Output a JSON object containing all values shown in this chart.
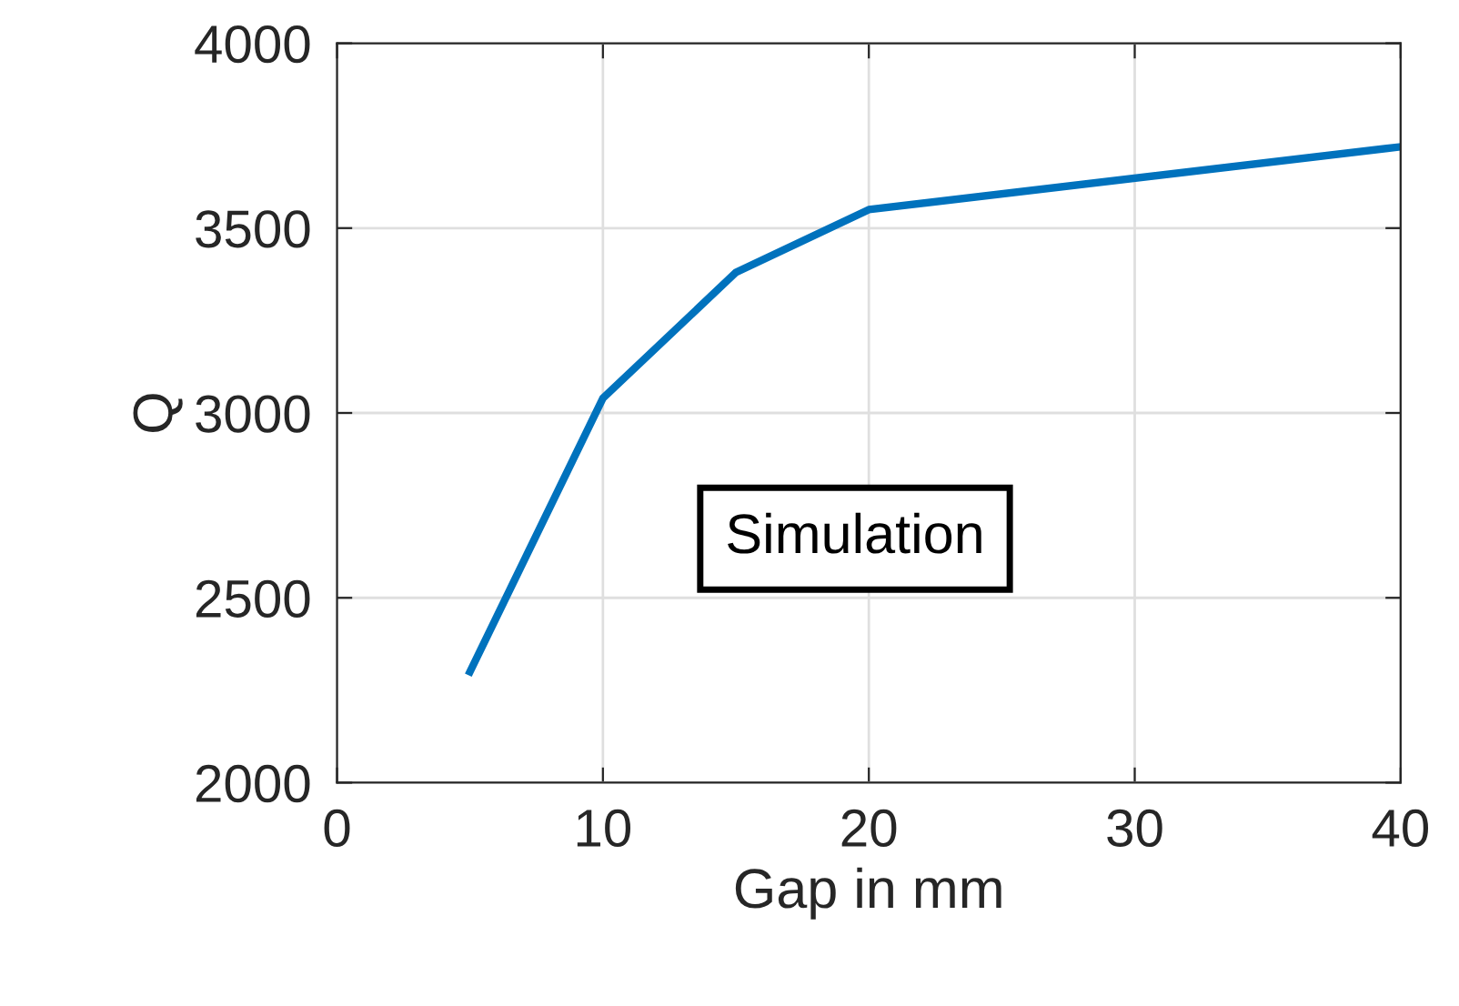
{
  "chart_data": {
    "type": "line",
    "xlabel": "Gap in mm",
    "ylabel": "Q",
    "x": [
      5,
      10,
      15,
      20,
      40
    ],
    "series": [
      {
        "color": "#0072bd",
        "values": [
          2300,
          3040,
          3380,
          3550,
          3720
        ]
      }
    ],
    "xlim": [
      0,
      40
    ],
    "xticks": [
      0,
      10,
      20,
      30,
      40
    ],
    "ylim": [
      2000,
      4000
    ],
    "yticks": [
      2000,
      2500,
      3000,
      3500,
      4000
    ],
    "grid": true,
    "marker": "none",
    "line_style": "solid",
    "annotations": [
      "Simulation"
    ]
  }
}
